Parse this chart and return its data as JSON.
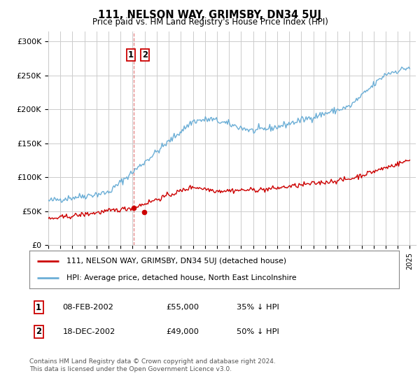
{
  "title": "111, NELSON WAY, GRIMSBY, DN34 5UJ",
  "subtitle": "Price paid vs. HM Land Registry's House Price Index (HPI)",
  "hpi_color": "#6baed6",
  "price_color": "#cc0000",
  "vline_color": "#cc0000",
  "background_color": "#ffffff",
  "grid_color": "#cccccc",
  "xlim_start": 1995.0,
  "xlim_end": 2025.5,
  "ylim_min": 0,
  "ylim_max": 315000,
  "sale1_date": 2002.1,
  "sale1_price": 55000,
  "sale2_date": 2002.95,
  "sale2_price": 49000,
  "legend_house": "111, NELSON WAY, GRIMSBY, DN34 5UJ (detached house)",
  "legend_hpi": "HPI: Average price, detached house, North East Lincolnshire",
  "footer": "Contains HM Land Registry data © Crown copyright and database right 2024.\nThis data is licensed under the Open Government Licence v3.0.",
  "yticks": [
    0,
    50000,
    100000,
    150000,
    200000,
    250000,
    300000
  ],
  "ytick_labels": [
    "£0",
    "£50K",
    "£100K",
    "£150K",
    "£200K",
    "£250K",
    "£300K"
  ]
}
